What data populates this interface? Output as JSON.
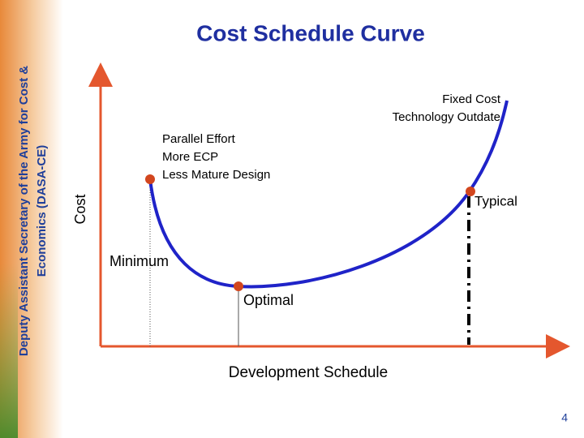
{
  "header": {
    "title": "Cost Schedule Curve"
  },
  "sidebar": {
    "lines": [
      "Deputy Assistant Secretary of the Army for Cost &",
      "Economics (DASA-CE)"
    ]
  },
  "axes": {
    "y_label": "Cost",
    "x_label": "Development Schedule"
  },
  "annotations": {
    "fixed": [
      "Fixed Cost",
      "Technology Outdate"
    ],
    "parallel": [
      "Parallel Effort",
      "More ECP",
      "Less Mature Design"
    ],
    "typical": "Typical",
    "minimum": "Minimum",
    "optimal": "Optimal"
  },
  "footer": {
    "page": "4"
  }
}
